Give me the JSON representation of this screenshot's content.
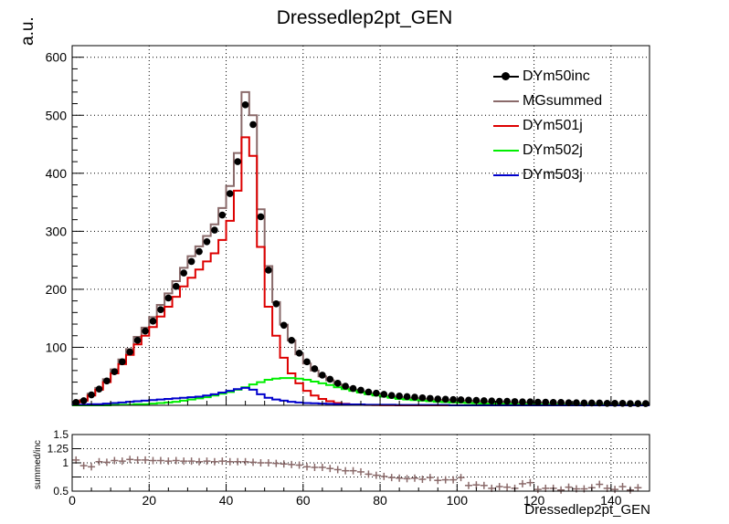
{
  "chart_data": [
    {
      "type": "line",
      "title": "Dressedlep2pt_GEN",
      "ylabel": "a.u.",
      "xlabel": "",
      "xlim": [
        0,
        150
      ],
      "ylim": [
        0,
        620
      ],
      "bin_width": 2,
      "x_ticks": [
        0,
        20,
        40,
        60,
        80,
        100,
        120,
        140
      ],
      "y_ticks": [
        100,
        200,
        300,
        400,
        500,
        600
      ],
      "grid": true,
      "legend_position": "top-right",
      "series": [
        {
          "name": "DYm50inc",
          "style": "markers",
          "color": "#000000",
          "values": [
            5,
            8,
            18,
            28,
            42,
            58,
            75,
            92,
            112,
            128,
            145,
            165,
            185,
            205,
            228,
            248,
            265,
            282,
            302,
            328,
            365,
            420,
            518,
            484,
            325,
            233,
            175,
            138,
            112,
            90,
            75,
            63,
            52,
            45,
            38,
            33,
            29,
            26,
            23,
            21,
            19,
            17,
            16,
            15,
            14,
            13,
            12,
            11,
            10.5,
            10,
            9.5,
            9,
            8.5,
            8,
            7.5,
            7,
            7,
            6.5,
            6,
            6,
            5.5,
            5.5,
            5,
            5,
            4.5,
            4.5,
            4,
            4,
            4,
            3.5,
            3.5,
            3.5,
            3,
            3,
            3
          ]
        },
        {
          "name": "MGsummed",
          "style": "step",
          "color": "#8a6a6a",
          "values": [
            6,
            9,
            20,
            30,
            45,
            62,
            79,
            97,
            118,
            134,
            152,
            173,
            193,
            214,
            237,
            257,
            274,
            292,
            312,
            340,
            378,
            435,
            540,
            500,
            338,
            240,
            178,
            139,
            112,
            88,
            72,
            60,
            50,
            43,
            36,
            31,
            27,
            24,
            21,
            19,
            17,
            15,
            14,
            13,
            12,
            11,
            10,
            9.5,
            9,
            8.5,
            8,
            7.5,
            7,
            6.5,
            6,
            6,
            5.5,
            5,
            5,
            4.5,
            4.5,
            4,
            4,
            3.5,
            3.5,
            3,
            3,
            3,
            2.5,
            2.5,
            2.5,
            2,
            2,
            2,
            2
          ]
        },
        {
          "name": "DYm501j",
          "style": "step",
          "color": "#dd0000",
          "values": [
            5,
            8,
            17,
            27,
            40,
            55,
            71,
            87,
            105,
            120,
            135,
            153,
            170,
            187,
            205,
            220,
            234,
            248,
            262,
            285,
            318,
            370,
            462,
            430,
            273,
            170,
            120,
            82,
            55,
            38,
            25,
            17,
            11,
            7,
            4,
            2.5,
            1.5,
            1,
            0.5,
            0.3,
            0.2,
            0.1,
            0,
            0,
            0,
            0,
            0,
            0,
            0,
            0,
            0,
            0,
            0,
            0,
            0,
            0,
            0,
            0,
            0,
            0,
            0,
            0,
            0,
            0,
            0,
            0,
            0,
            0,
            0,
            0,
            0,
            0,
            0,
            0,
            0
          ]
        },
        {
          "name": "DYm502j",
          "style": "step",
          "color": "#00ee00",
          "values": [
            0,
            0,
            0,
            0,
            0,
            0.5,
            1,
            1,
            2,
            2,
            3,
            4,
            5,
            6,
            8,
            10,
            12,
            14,
            17,
            20,
            23,
            27,
            31,
            36,
            40,
            44,
            46,
            47,
            47,
            46,
            44,
            41,
            38,
            35,
            31,
            28,
            25,
            22,
            19,
            17,
            15,
            13,
            11,
            10,
            9,
            8,
            7,
            6,
            5.5,
            5,
            4.5,
            4,
            3.5,
            3,
            3,
            2.5,
            2.5,
            2,
            2,
            2,
            1.5,
            1.5,
            1.5,
            1,
            1,
            1,
            1,
            1,
            1,
            0.5,
            0.5,
            0.5,
            0.5,
            0.5,
            0.5
          ]
        },
        {
          "name": "DYm503j",
          "style": "step",
          "color": "#0000cc",
          "values": [
            1,
            1,
            2,
            2,
            3,
            4,
            5,
            6,
            7,
            8,
            9,
            10,
            11,
            12,
            13,
            14,
            15,
            17,
            19,
            22,
            25,
            28,
            30,
            27,
            19,
            13,
            10,
            8,
            6,
            5,
            4,
            3.5,
            3,
            2.5,
            2,
            2,
            1.5,
            1.5,
            1,
            1,
            1,
            1,
            0.5,
            0.5,
            0.5,
            0.5,
            0.5,
            0.5,
            0.5,
            0,
            0,
            0,
            0,
            0,
            0,
            0,
            0,
            0,
            0,
            0,
            0,
            0,
            0,
            0,
            0,
            0,
            0,
            0,
            0,
            0,
            0,
            0,
            0,
            0,
            0
          ]
        }
      ]
    },
    {
      "type": "scatter",
      "title": "",
      "ylabel": "summed/inc",
      "xlabel": "Dressedlep2pt_GEN",
      "xlim": [
        0,
        150
      ],
      "ylim": [
        0.5,
        1.5
      ],
      "y_ticks": [
        0.5,
        0.75,
        1,
        1.25,
        1.5
      ],
      "y_tick_labels": [
        "0.5",
        "",
        "1",
        "1.25",
        "1.5"
      ],
      "x_ticks": [
        0,
        20,
        40,
        60,
        80,
        100,
        120,
        140
      ],
      "grid": true,
      "series": [
        {
          "name": "",
          "color": "#8a6a6a",
          "x": [
            1,
            3,
            5,
            7,
            9,
            11,
            13,
            15,
            17,
            19,
            21,
            23,
            25,
            27,
            29,
            31,
            33,
            35,
            37,
            39,
            41,
            43,
            45,
            47,
            49,
            51,
            53,
            55,
            57,
            59,
            61,
            63,
            65,
            67,
            69,
            71,
            73,
            75,
            77,
            79,
            81,
            83,
            85,
            87,
            89,
            91,
            93,
            95,
            97,
            99,
            101,
            103,
            105,
            107,
            109,
            111,
            113,
            115,
            117,
            119,
            121,
            123,
            125,
            127,
            129,
            131,
            133,
            135,
            137,
            139,
            141,
            143,
            145,
            147
          ],
          "values": [
            1.05,
            0.95,
            0.93,
            1.02,
            1.01,
            1.04,
            1.03,
            1.06,
            1.05,
            1.05,
            1.04,
            1.04,
            1.03,
            1.04,
            1.03,
            1.03,
            1.02,
            1.03,
            1.02,
            1.03,
            1.02,
            1.02,
            1.02,
            1.01,
            1.0,
            1.0,
            0.99,
            0.98,
            0.97,
            0.96,
            0.93,
            0.92,
            0.92,
            0.9,
            0.88,
            0.86,
            0.86,
            0.84,
            0.8,
            0.78,
            0.76,
            0.74,
            0.73,
            0.72,
            0.73,
            0.71,
            0.74,
            0.69,
            0.7,
            0.7,
            0.74,
            0.6,
            0.61,
            0.6,
            0.55,
            0.58,
            0.57,
            0.55,
            0.63,
            0.65,
            0.53,
            0.55,
            0.55,
            0.52,
            0.57,
            0.54,
            0.54,
            0.56,
            0.62,
            0.55,
            0.53,
            0.58,
            0.52,
            0.56
          ]
        }
      ]
    }
  ]
}
